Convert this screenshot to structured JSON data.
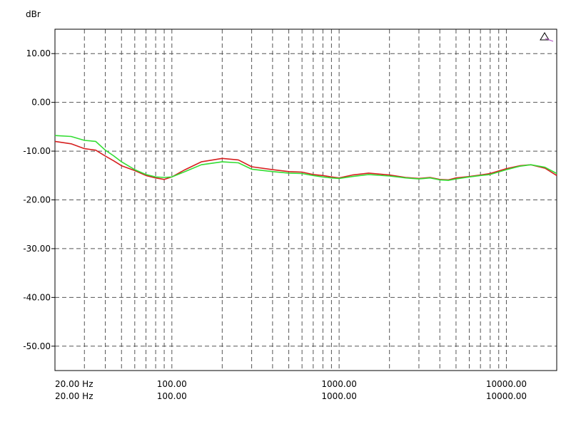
{
  "chart_data": {
    "type": "line",
    "title": "",
    "xlabel": "",
    "ylabel": "dBr",
    "x_scale": "log",
    "xlim": [
      20,
      20000
    ],
    "ylim": [
      -55,
      15
    ],
    "grid": true,
    "y_ticks": [
      "10.00",
      "0.00",
      "-10.00",
      "-20.00",
      "-30.00",
      "-40.00",
      "-50.00"
    ],
    "y_tick_values": [
      10,
      0,
      -10,
      -20,
      -30,
      -40,
      -50
    ],
    "x_tick_labels_row1": [
      "20.00 Hz",
      "100.00",
      "1000.00",
      "10000.00"
    ],
    "x_tick_labels_row2": [
      "20.00 Hz",
      "100.00",
      "1000.00",
      "10000.00"
    ],
    "x_tick_values": [
      20,
      100,
      1000,
      10000
    ],
    "series": [
      {
        "color": "#d62020",
        "x": [
          20,
          25,
          30,
          35,
          40,
          45,
          50,
          60,
          70,
          80,
          90,
          100,
          120,
          150,
          200,
          250,
          300,
          400,
          500,
          600,
          700,
          800,
          900,
          1000,
          1200,
          1500,
          2000,
          2500,
          3000,
          3500,
          4000,
          4500,
          5000,
          6000,
          7000,
          8000,
          10000,
          12000,
          14000,
          17000,
          20000
        ],
        "y": [
          -8.0,
          -8.5,
          -9.5,
          -9.8,
          -11.0,
          -12.0,
          -13.0,
          -14.0,
          -15.0,
          -15.5,
          -15.8,
          -15.3,
          -13.8,
          -12.2,
          -11.5,
          -11.8,
          -13.2,
          -13.8,
          -14.2,
          -14.3,
          -14.8,
          -15.0,
          -15.3,
          -15.5,
          -14.9,
          -14.5,
          -14.9,
          -15.4,
          -15.6,
          -15.4,
          -15.8,
          -15.9,
          -15.5,
          -15.2,
          -14.9,
          -14.6,
          -13.6,
          -13.0,
          -12.8,
          -13.5,
          -15.0
        ]
      },
      {
        "color": "#33dd33",
        "x": [
          20,
          25,
          30,
          35,
          40,
          45,
          50,
          60,
          70,
          80,
          90,
          100,
          120,
          150,
          200,
          250,
          300,
          400,
          500,
          600,
          700,
          800,
          900,
          1000,
          1200,
          1500,
          2000,
          2500,
          3000,
          3500,
          4000,
          4500,
          5000,
          6000,
          7000,
          8000,
          10000,
          12000,
          14000,
          17000,
          20000
        ],
        "y": [
          -6.8,
          -7.0,
          -7.8,
          -8.0,
          -9.8,
          -11.0,
          -12.2,
          -13.8,
          -14.8,
          -15.3,
          -15.4,
          -15.3,
          -14.2,
          -12.8,
          -12.2,
          -12.4,
          -13.7,
          -14.2,
          -14.5,
          -14.6,
          -15.0,
          -15.3,
          -15.5,
          -15.6,
          -15.2,
          -14.8,
          -15.1,
          -15.5,
          -15.7,
          -15.5,
          -15.9,
          -16.0,
          -15.7,
          -15.3,
          -15.0,
          -14.8,
          -13.8,
          -13.1,
          -12.8,
          -13.3,
          -14.6
        ]
      }
    ]
  }
}
